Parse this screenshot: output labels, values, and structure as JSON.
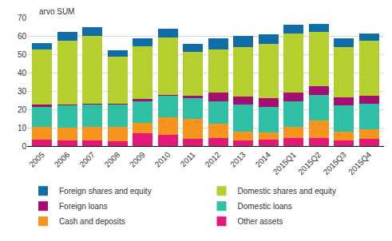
{
  "chart_data": {
    "type": "bar",
    "stacked": true,
    "ylabel": "arvo SUM",
    "categories": [
      "2005",
      "2006",
      "2007",
      "2008",
      "2009",
      "2010",
      "2011",
      "2012",
      "2013",
      "2014",
      "2015Q1",
      "2015Q2",
      "2015Q3",
      "2015Q4"
    ],
    "series": [
      {
        "name": "Other assets",
        "color": "#e6177b",
        "values": [
          3.5,
          3,
          3,
          2.5,
          7,
          6,
          4,
          4.5,
          3,
          3.5,
          4.5,
          4.5,
          3,
          4
        ]
      },
      {
        "name": "Cash and deposits",
        "color": "#f7941d",
        "values": [
          7,
          7,
          7.5,
          8,
          5.5,
          9.5,
          11,
          7.5,
          5,
          4,
          6,
          9.5,
          5,
          5
        ]
      },
      {
        "name": "Domestic loans",
        "color": "#2ebfa5",
        "values": [
          11,
          12,
          12,
          12,
          12,
          12,
          11,
          12.5,
          14.5,
          14,
          14,
          14,
          14,
          14
        ]
      },
      {
        "name": "Foreign loans",
        "color": "#a50e71",
        "values": [
          1,
          0.5,
          0.5,
          0.5,
          1,
          0.5,
          1.5,
          4.5,
          4.5,
          4.5,
          4.5,
          4.5,
          4.5,
          4.5
        ]
      },
      {
        "name": "Domestic shares and equity",
        "color": "#b5cf2f",
        "values": [
          30,
          35,
          37,
          25.5,
          29,
          31,
          24,
          23.5,
          27,
          29.5,
          32.5,
          29.5,
          27.5,
          30
        ]
      },
      {
        "name": "Foreign shares and equity",
        "color": "#0f6ea8",
        "values": [
          3.5,
          4.5,
          5,
          3.5,
          4,
          5,
          4,
          6,
          6,
          5.5,
          4.5,
          4.5,
          4.5,
          4
        ]
      }
    ],
    "ylim": [
      0,
      70
    ],
    "yticks": [
      0,
      10,
      20,
      30,
      40,
      50,
      60,
      70
    ],
    "grid": true,
    "legend": "bottom"
  }
}
